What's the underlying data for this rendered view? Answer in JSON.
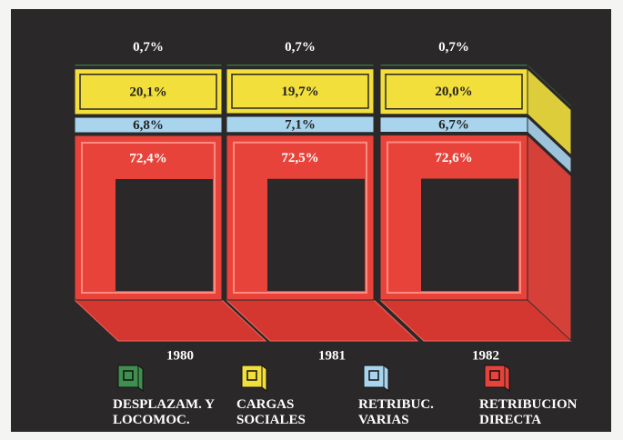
{
  "chart_data": {
    "type": "bar",
    "categories": [
      "1980",
      "1981",
      "1982"
    ],
    "series": [
      {
        "name": "DESPLAZAM. Y LOCOMOC.",
        "color": "#3f8f4f",
        "values": [
          0.7,
          0.7,
          0.7
        ],
        "value_labels": [
          "0,7%",
          "0,7%",
          "0,7%"
        ]
      },
      {
        "name": "CARGAS SOCIALES",
        "color": "#f2df3c",
        "values": [
          20.1,
          19.7,
          20.0
        ],
        "value_labels": [
          "20,1%",
          "19,7%",
          "20,0%"
        ]
      },
      {
        "name": "RETRIBUC. VARIAS",
        "color": "#a9d4ee",
        "values": [
          6.8,
          7.1,
          6.7
        ],
        "value_labels": [
          "6,8%",
          "7,1%",
          "6,7%"
        ]
      },
      {
        "name": "RETRIBUCION DIRECTA",
        "color": "#e8433a",
        "values": [
          72.4,
          72.5,
          72.6
        ],
        "value_labels": [
          "72,4%",
          "72,5%",
          "72,6%"
        ]
      }
    ]
  }
}
